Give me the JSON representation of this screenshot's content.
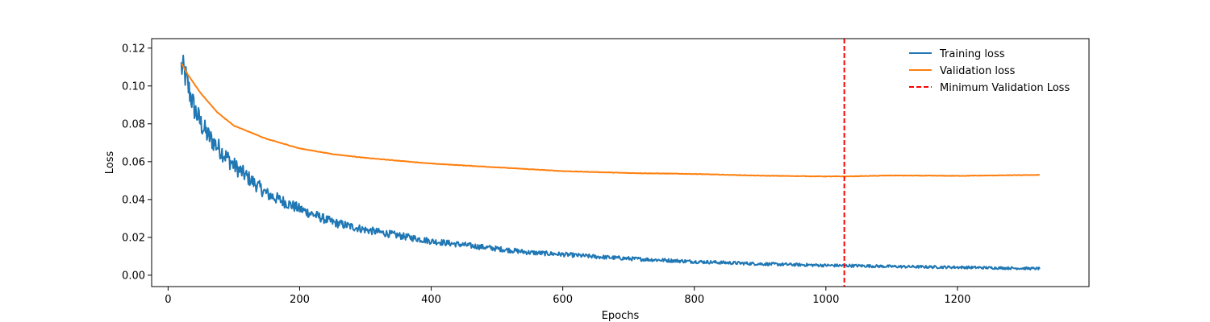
{
  "chart_data": {
    "type": "line",
    "xlabel": "Epochs",
    "ylabel": "Loss",
    "xlim": [
      -25,
      1400
    ],
    "ylim": [
      -0.006,
      0.125
    ],
    "xticks": [
      0,
      200,
      400,
      600,
      800,
      1000,
      1200
    ],
    "yticks": [
      0.0,
      0.02,
      0.04,
      0.06,
      0.08,
      0.1,
      0.12
    ],
    "xtick_labels": [
      "0",
      "200",
      "400",
      "600",
      "800",
      "1000",
      "1200"
    ],
    "ytick_labels": [
      "0.00",
      "0.02",
      "0.04",
      "0.06",
      "0.08",
      "0.10",
      "0.12"
    ],
    "grid": false,
    "legend_position": "top-right",
    "series": [
      {
        "name": "Training loss",
        "color": "#1f77b4",
        "noisy": true,
        "x": [
          20,
          25,
          30,
          40,
          50,
          60,
          80,
          100,
          120,
          150,
          200,
          250,
          300,
          350,
          400,
          450,
          500,
          550,
          600,
          650,
          700,
          800,
          900,
          1000,
          1050,
          1100,
          1200,
          1325
        ],
        "y": [
          0.11,
          0.107,
          0.1,
          0.088,
          0.08,
          0.074,
          0.066,
          0.058,
          0.052,
          0.043,
          0.035,
          0.028,
          0.024,
          0.021,
          0.018,
          0.016,
          0.014,
          0.012,
          0.011,
          0.0098,
          0.0088,
          0.0072,
          0.006,
          0.0052,
          0.005,
          0.0046,
          0.0042,
          0.0035
        ]
      },
      {
        "name": "Validation loss",
        "color": "#ff7f0e",
        "noisy": false,
        "x": [
          20,
          30,
          50,
          75,
          100,
          150,
          200,
          250,
          300,
          400,
          500,
          600,
          700,
          800,
          900,
          1000,
          1030,
          1100,
          1200,
          1325
        ],
        "y": [
          0.112,
          0.106,
          0.096,
          0.086,
          0.079,
          0.072,
          0.067,
          0.064,
          0.062,
          0.059,
          0.057,
          0.055,
          0.054,
          0.0535,
          0.0526,
          0.0522,
          0.0522,
          0.0527,
          0.0525,
          0.053
        ]
      }
    ],
    "vline": {
      "name": "Minimum Validation Loss",
      "x": 1028,
      "color": "#ff0000",
      "style": "dashed"
    }
  }
}
